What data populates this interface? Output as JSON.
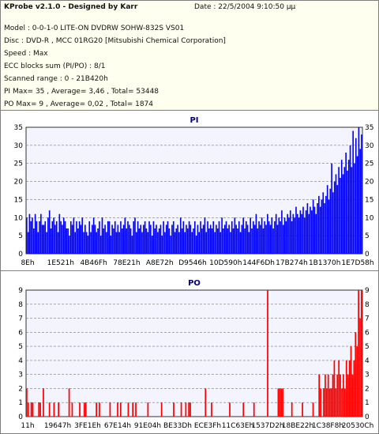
{
  "header": {
    "app_title": "KProbe v2.1.0 - Designed by Karr",
    "date": "Date : 22/5/2004 9:10:50 μμ",
    "lines": [
      "Model : 0-0-1-0 LITE-ON DVDRW SOHW-832S  VS01",
      "Disc : DVD-R , MCC 01RG20  [Mitsubishi Chemical Corporation]",
      "Speed : Max",
      "ECC blocks sum (PI/PO) : 8/1",
      "Scanned range : 0 - 21B420h",
      "PI Max= 35 , Average= 3,46 , Total= 53448",
      "PO Max= 9 , Average= 0,02 , Total= 1874"
    ]
  },
  "chart_data": [
    {
      "type": "bar",
      "title": "PI",
      "color": "#0000ff",
      "ylim": [
        0,
        35
      ],
      "y_ticks": [
        0,
        5,
        10,
        15,
        20,
        25,
        30,
        35
      ],
      "x_tick_labels": [
        "8Eh",
        "1E521h",
        "4B46Fh",
        "78E21h",
        "A8E72h",
        "D9546h",
        "10D590h",
        "144F6Dh",
        "17B274h",
        "1B1370h",
        "1E7D58h"
      ],
      "grid": true,
      "series": [
        {
          "values": [
            10,
            6,
            11,
            9,
            10,
            7,
            11,
            9,
            6,
            9,
            11,
            8,
            8,
            9,
            6,
            10,
            12,
            7,
            9,
            10,
            8,
            9,
            6,
            11,
            9,
            8,
            10,
            9,
            7,
            7,
            5,
            9,
            8,
            10,
            6,
            9,
            7,
            9,
            8,
            10,
            6,
            8,
            6,
            5,
            9,
            6,
            8,
            10,
            8,
            6,
            7,
            9,
            5,
            10,
            7,
            8,
            6,
            9,
            9,
            5,
            8,
            7,
            9,
            6,
            8,
            6,
            9,
            7,
            8,
            10,
            7,
            9,
            8,
            7,
            5,
            9,
            10,
            6,
            9,
            7,
            8,
            6,
            8,
            9,
            7,
            6,
            9,
            8,
            5,
            9,
            7,
            8,
            6,
            7,
            8,
            5,
            9,
            6,
            8,
            9,
            7,
            5,
            8,
            9,
            6,
            7,
            8,
            6,
            10,
            7,
            9,
            6,
            8,
            7,
            9,
            8,
            6,
            7,
            9,
            5,
            8,
            6,
            9,
            7,
            8,
            10,
            6,
            9,
            7,
            8,
            7,
            9,
            6,
            8,
            7,
            9,
            6,
            10,
            7,
            8,
            9,
            7,
            8,
            6,
            9,
            7,
            10,
            8,
            7,
            9,
            6,
            8,
            10,
            7,
            9,
            8,
            6,
            10,
            7,
            9,
            8,
            11,
            7,
            9,
            8,
            10,
            7,
            9,
            8,
            11,
            9,
            8,
            10,
            7,
            9,
            11,
            8,
            10,
            9,
            12,
            8,
            10,
            9,
            11,
            10,
            12,
            9,
            11,
            10,
            13,
            11,
            10,
            12,
            11,
            13,
            10,
            12,
            14,
            11,
            13,
            12,
            15,
            13,
            11,
            14,
            16,
            13,
            15,
            17,
            14,
            16,
            19,
            15,
            18,
            25,
            17,
            20,
            22,
            19,
            24,
            21,
            26,
            22,
            24,
            28,
            23,
            26,
            30,
            24,
            34,
            25,
            32,
            27,
            35,
            29,
            33
          ],
          "note": ""
        }
      ]
    },
    {
      "type": "bar",
      "title": "PO",
      "color": "#ff0000",
      "ylim": [
        0,
        9
      ],
      "y_ticks": [
        0,
        1,
        2,
        3,
        4,
        5,
        6,
        7,
        8,
        9
      ],
      "x_tick_labels": [
        "11h",
        "19647h",
        "3FE1Eh",
        "67E14h",
        "91E04h",
        "BE33Dh",
        "ECE3Fh",
        "11C63Eh",
        "1537D2h",
        "18BE22h",
        "1C38F8h",
        "20530Ch"
      ],
      "grid": true,
      "series": [
        {
          "values": [
            2,
            1,
            0,
            1,
            1,
            0,
            0,
            0,
            1,
            1,
            0,
            2,
            0,
            0,
            0,
            1,
            0,
            0,
            1,
            0,
            0,
            1,
            0,
            0,
            0,
            0,
            0,
            0,
            2,
            0,
            1,
            0,
            0,
            0,
            0,
            1,
            0,
            0,
            1,
            1,
            0,
            0,
            0,
            0,
            0,
            0,
            1,
            0,
            1,
            0,
            0,
            0,
            0,
            0,
            0,
            1,
            0,
            0,
            0,
            0,
            1,
            0,
            1,
            0,
            0,
            0,
            0,
            1,
            0,
            0,
            1,
            0,
            1,
            0,
            0,
            0,
            0,
            0,
            0,
            0,
            1,
            0,
            0,
            0,
            0,
            0,
            0,
            0,
            0,
            1,
            0,
            0,
            0,
            0,
            0,
            0,
            0,
            1,
            0,
            0,
            0,
            0,
            1,
            0,
            0,
            1,
            0,
            1,
            1,
            0,
            0,
            0,
            0,
            0,
            0,
            0,
            0,
            0,
            2,
            0,
            0,
            0,
            1,
            0,
            0,
            0,
            0,
            0,
            0,
            0,
            0,
            0,
            0,
            0,
            1,
            0,
            0,
            0,
            0,
            0,
            0,
            0,
            0,
            1,
            0,
            0,
            0,
            0,
            0,
            0,
            1,
            0,
            0,
            0,
            0,
            0,
            0,
            0,
            0,
            9,
            0,
            0,
            0,
            0,
            0,
            0,
            2,
            2,
            2,
            2,
            0,
            0,
            0,
            0,
            0,
            1,
            0,
            0,
            0,
            0,
            0,
            0,
            1,
            0,
            0,
            0,
            0,
            0,
            0,
            1,
            0,
            0,
            0,
            3,
            2,
            0,
            2,
            3,
            2,
            3,
            2,
            2,
            3,
            4,
            2,
            3,
            4,
            3,
            2,
            3,
            2,
            4,
            3,
            4,
            5,
            3,
            4,
            6,
            5,
            9,
            7,
            9
          ],
          "note": ""
        }
      ]
    }
  ]
}
